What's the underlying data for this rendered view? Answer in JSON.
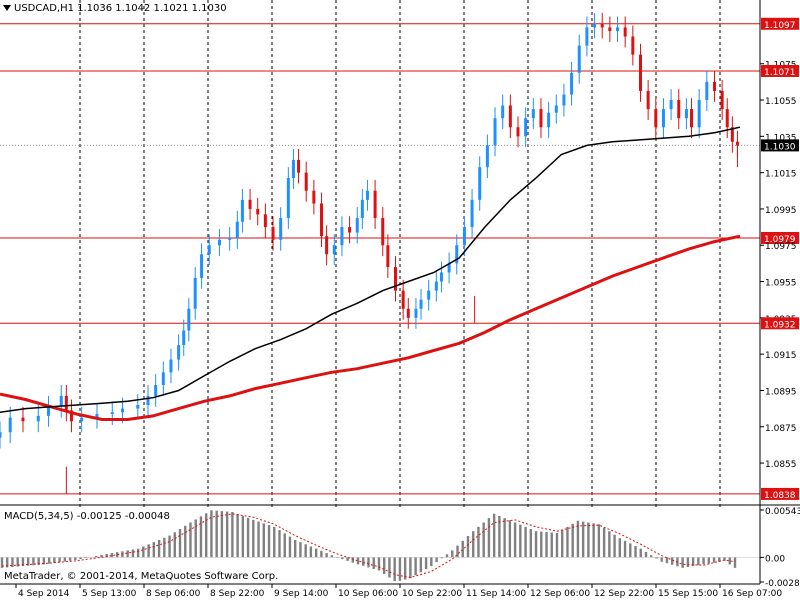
{
  "window": {
    "symbol_line": "USDCAD,H1  1.1036 1.1042 1.1021 1.1030",
    "copyright": "MetaTrader, © 2001-2014, MetaQuotes Software Corp.",
    "macd_label": "MACD(5,34,5) -0.00125 -0.00048"
  },
  "colors": {
    "background": "#ffffff",
    "bull_candle": "#1e90ff",
    "bear_candle": "#dd1111",
    "level_line": "#dd1111",
    "ma_fast": "#000000",
    "ma_slow": "#dd1111",
    "macd_hist": "#808080",
    "macd_signal": "#dd1111",
    "current_price_tag": "#000000"
  },
  "chart_data": [
    {
      "type": "candlestick",
      "symbol": "USDCAD",
      "timeframe": "H1",
      "ylim": [
        1.0833,
        1.1109
      ],
      "grid": true,
      "price_axis_ticks": [
        "1.1097",
        "1.1075",
        "1.1071",
        "1.1055",
        "1.1035",
        "1.1030",
        "1.1015",
        "1.0995",
        "1.0979",
        "1.0975",
        "1.0955",
        "1.0935",
        "1.0932",
        "1.0915",
        "1.0895",
        "1.0875",
        "1.0855",
        "1.0838"
      ],
      "time_axis_labels": [
        "4 Sep 2014",
        "5 Sep 13:00",
        "8 Sep 06:00",
        "8 Sep 22:00",
        "9 Sep 14:00",
        "10 Sep 06:00",
        "10 Sep 22:00",
        "11 Sep 14:00",
        "12 Sep 06:00",
        "12 Sep 22:00",
        "15 Sep 15:00",
        "16 Sep 07:00"
      ],
      "horizontal_levels": [
        {
          "label": "1.1097",
          "value": 1.1097
        },
        {
          "label": "1.1071",
          "value": 1.1071
        },
        {
          "label": "1.0979",
          "value": 1.0979
        },
        {
          "label": "1.0932",
          "value": 1.0932
        },
        {
          "label": "1.0838",
          "value": 1.0838
        }
      ],
      "current_price": {
        "label": "1.1030",
        "value": 1.103
      },
      "close_path": [
        [
          0,
          1.0872
        ],
        [
          8,
          1.088
        ],
        [
          18,
          1.0878
        ],
        [
          30,
          1.0881
        ],
        [
          38,
          1.0886
        ],
        [
          48,
          1.0892
        ],
        [
          52,
          1.0884
        ],
        [
          56,
          1.0878
        ],
        [
          64,
          1.088
        ],
        [
          76,
          1.0882
        ],
        [
          88,
          1.0883
        ],
        [
          96,
          1.0885
        ],
        [
          108,
          1.0887
        ],
        [
          116,
          1.0892
        ],
        [
          122,
          1.0898
        ],
        [
          128,
          1.0905
        ],
        [
          134,
          1.0912
        ],
        [
          140,
          1.092
        ],
        [
          144,
          1.0928
        ],
        [
          148,
          1.094
        ],
        [
          153,
          1.0957
        ],
        [
          158,
          1.097
        ],
        [
          164,
          1.0975
        ],
        [
          172,
          1.0978
        ],
        [
          180,
          1.0979
        ],
        [
          186,
          1.0988
        ],
        [
          190,
          1.1
        ],
        [
          196,
          1.0995
        ],
        [
          202,
          1.0992
        ],
        [
          208,
          1.0985
        ],
        [
          214,
          1.0978
        ],
        [
          220,
          1.099
        ],
        [
          226,
          1.1012
        ],
        [
          230,
          1.1022
        ],
        [
          234,
          1.1015
        ],
        [
          240,
          1.1005
        ],
        [
          246,
          1.0998
        ],
        [
          252,
          1.098
        ],
        [
          256,
          1.097
        ],
        [
          262,
          1.0975
        ],
        [
          268,
          1.0985
        ],
        [
          274,
          1.0982
        ],
        [
          280,
          1.099
        ],
        [
          284,
          1.1
        ],
        [
          288,
          1.1005
        ],
        [
          294,
          1.099
        ],
        [
          300,
          1.0975
        ],
        [
          304,
          1.0963
        ],
        [
          310,
          1.095
        ],
        [
          316,
          1.094
        ],
        [
          320,
          1.0935
        ],
        [
          326,
          1.094
        ],
        [
          330,
          1.0945
        ],
        [
          336,
          1.095
        ],
        [
          342,
          1.0955
        ],
        [
          346,
          1.096
        ],
        [
          352,
          1.0965
        ],
        [
          358,
          1.0975
        ],
        [
          364,
          1.0985
        ],
        [
          370,
          1.1
        ],
        [
          376,
          1.1018
        ],
        [
          382,
          1.103
        ],
        [
          388,
          1.1045
        ],
        [
          394,
          1.1052
        ],
        [
          400,
          1.104
        ],
        [
          406,
          1.1035
        ],
        [
          412,
          1.1045
        ],
        [
          418,
          1.105
        ],
        [
          424,
          1.104
        ],
        [
          430,
          1.1048
        ],
        [
          436,
          1.1052
        ],
        [
          442,
          1.1058
        ],
        [
          448,
          1.107
        ],
        [
          454,
          1.1085
        ],
        [
          460,
          1.1095
        ],
        [
          466,
          1.1097
        ],
        [
          472,
          1.1095
        ],
        [
          478,
          1.1093
        ],
        [
          484,
          1.1095
        ],
        [
          490,
          1.109
        ],
        [
          496,
          1.108
        ],
        [
          502,
          1.106
        ],
        [
          508,
          1.105
        ],
        [
          514,
          1.104
        ],
        [
          520,
          1.105
        ],
        [
          526,
          1.1055
        ],
        [
          532,
          1.1045
        ],
        [
          538,
          1.105
        ],
        [
          542,
          1.104
        ],
        [
          548,
          1.1055
        ],
        [
          554,
          1.1065
        ],
        [
          560,
          1.106
        ],
        [
          566,
          1.105
        ],
        [
          570,
          1.104
        ],
        [
          574,
          1.1032
        ],
        [
          578,
          1.103
        ]
      ],
      "spikes": [
        {
          "x": 52,
          "low": 1.0838
        },
        {
          "x": 372,
          "low": 1.0932
        },
        {
          "x": 578,
          "low": 1.1018
        }
      ],
      "ma_fast": [
        [
          0,
          1.0883
        ],
        [
          20,
          1.0885
        ],
        [
          40,
          1.0886
        ],
        [
          60,
          1.0887
        ],
        [
          80,
          1.0888
        ],
        [
          100,
          1.0889
        ],
        [
          120,
          1.0891
        ],
        [
          140,
          1.0895
        ],
        [
          160,
          1.0903
        ],
        [
          180,
          1.0911
        ],
        [
          200,
          1.0918
        ],
        [
          220,
          1.0923
        ],
        [
          240,
          1.0929
        ],
        [
          260,
          1.0937
        ],
        [
          280,
          1.0943
        ],
        [
          300,
          1.095
        ],
        [
          320,
          1.0955
        ],
        [
          340,
          1.096
        ],
        [
          360,
          1.0968
        ],
        [
          380,
          1.0985
        ],
        [
          400,
          1.1
        ],
        [
          420,
          1.1012
        ],
        [
          440,
          1.1025
        ],
        [
          460,
          1.103
        ],
        [
          480,
          1.1032
        ],
        [
          500,
          1.1033
        ],
        [
          520,
          1.1034
        ],
        [
          540,
          1.1035
        ],
        [
          560,
          1.1037
        ],
        [
          580,
          1.104
        ]
      ],
      "ma_slow": [
        [
          0,
          1.0893
        ],
        [
          20,
          1.089
        ],
        [
          40,
          1.0886
        ],
        [
          60,
          1.0882
        ],
        [
          80,
          1.0879
        ],
        [
          100,
          1.0879
        ],
        [
          120,
          1.0881
        ],
        [
          140,
          1.0885
        ],
        [
          160,
          1.0889
        ],
        [
          180,
          1.0892
        ],
        [
          200,
          1.0896
        ],
        [
          220,
          1.0899
        ],
        [
          240,
          1.0902
        ],
        [
          260,
          1.0905
        ],
        [
          280,
          1.0907
        ],
        [
          300,
          1.091
        ],
        [
          320,
          1.0913
        ],
        [
          340,
          1.0917
        ],
        [
          360,
          1.0921
        ],
        [
          380,
          1.0927
        ],
        [
          400,
          1.0934
        ],
        [
          420,
          1.094
        ],
        [
          440,
          1.0946
        ],
        [
          460,
          1.0952
        ],
        [
          480,
          1.0958
        ],
        [
          500,
          1.0963
        ],
        [
          520,
          1.0968
        ],
        [
          540,
          1.0973
        ],
        [
          560,
          1.0977
        ],
        [
          580,
          1.098
        ]
      ]
    },
    {
      "type": "bar",
      "name": "MACD(5,34,5)",
      "ylim": [
        -0.00282,
        0.00543
      ],
      "axis_ticks": [
        "0.00543",
        "0.00",
        "-0.00282"
      ],
      "histogram": [
        [
          0,
          -0.0012
        ],
        [
          40,
          -0.0008
        ],
        [
          70,
          -0.0003
        ],
        [
          100,
          0.0004
        ],
        [
          130,
          0.001
        ],
        [
          160,
          0.0025
        ],
        [
          180,
          0.004
        ],
        [
          200,
          0.0054
        ],
        [
          220,
          0.0052
        ],
        [
          240,
          0.0043
        ],
        [
          260,
          0.0035
        ],
        [
          280,
          0.002
        ],
        [
          300,
          0.001
        ],
        [
          320,
          0.0
        ],
        [
          340,
          -0.0008
        ],
        [
          360,
          -0.0015
        ],
        [
          376,
          -0.0028
        ],
        [
          390,
          -0.0024
        ],
        [
          410,
          -0.001
        ],
        [
          430,
          0.0008
        ],
        [
          450,
          0.003
        ],
        [
          470,
          0.005
        ],
        [
          490,
          0.004
        ],
        [
          510,
          0.003
        ],
        [
          530,
          0.0028
        ],
        [
          550,
          0.0042
        ],
        [
          570,
          0.0038
        ],
        [
          590,
          0.0022
        ],
        [
          610,
          0.001
        ],
        [
          630,
          -0.0005
        ],
        [
          650,
          -0.0012
        ],
        [
          670,
          -0.0008
        ],
        [
          690,
          -0.0004
        ],
        [
          700,
          -0.0012
        ]
      ],
      "signal": [
        [
          0,
          -0.001
        ],
        [
          40,
          -0.0007
        ],
        [
          70,
          -0.0004
        ],
        [
          100,
          0.0001
        ],
        [
          130,
          0.0007
        ],
        [
          160,
          0.0018
        ],
        [
          180,
          0.0032
        ],
        [
          200,
          0.0046
        ],
        [
          220,
          0.005
        ],
        [
          240,
          0.0046
        ],
        [
          260,
          0.0038
        ],
        [
          280,
          0.0025
        ],
        [
          300,
          0.0014
        ],
        [
          320,
          0.0004
        ],
        [
          340,
          -0.0004
        ],
        [
          360,
          -0.0011
        ],
        [
          376,
          -0.002
        ],
        [
          390,
          -0.0023
        ],
        [
          410,
          -0.0016
        ],
        [
          430,
          -0.0002
        ],
        [
          450,
          0.002
        ],
        [
          470,
          0.004
        ],
        [
          490,
          0.0043
        ],
        [
          510,
          0.0035
        ],
        [
          530,
          0.003
        ],
        [
          550,
          0.0036
        ],
        [
          570,
          0.0037
        ],
        [
          590,
          0.0027
        ],
        [
          610,
          0.0015
        ],
        [
          630,
          0.0002
        ],
        [
          650,
          -0.0008
        ],
        [
          670,
          -0.0009
        ],
        [
          690,
          -0.0003
        ],
        [
          700,
          -0.0005
        ]
      ]
    }
  ]
}
